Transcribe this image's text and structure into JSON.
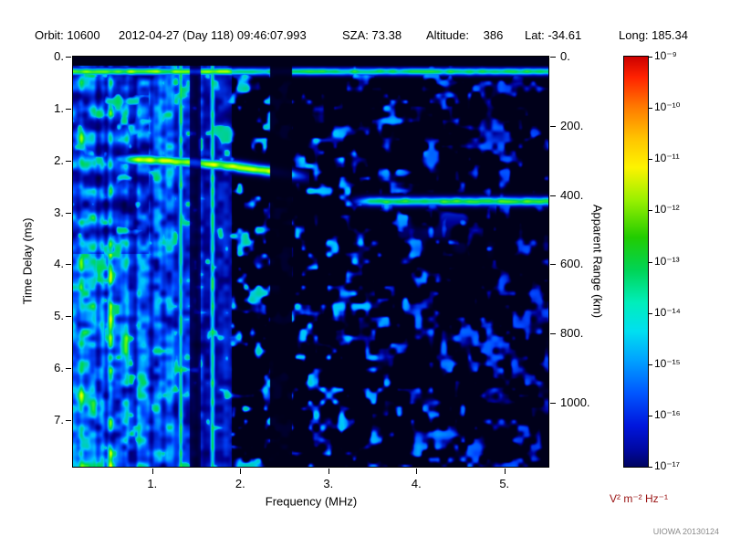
{
  "header": {
    "orbit_label": "Orbit:",
    "orbit_value": "10600",
    "datetime": "2012-04-27 (Day 118) 09:46:07.993",
    "sza_label": "SZA:",
    "sza_value": "73.38",
    "altitude_label": "Altitude:",
    "altitude_value": "386",
    "lat_label": "Lat:",
    "lat_value": "-34.61",
    "long_label": "Long:",
    "long_value": "185.34"
  },
  "chart_data": {
    "type": "heatmap",
    "xlabel": "Frequency (MHz)",
    "ylabel_left": "Time Delay (ms)",
    "ylabel_right": "Apparent Range (km)",
    "x_range_mhz": [
      0.1,
      5.5
    ],
    "y_range_ms": [
      0.0,
      7.9
    ],
    "x_ticks_mhz": [
      1,
      2,
      3,
      4,
      5
    ],
    "x_tick_labels": [
      "1.",
      "2.",
      "3.",
      "4.",
      "5."
    ],
    "y_ticks_ms": [
      0,
      1,
      2,
      3,
      4,
      5,
      6,
      7
    ],
    "y_tick_labels": [
      "0.",
      "1.",
      "2.",
      "3.",
      "4.",
      "5.",
      "6.",
      "7."
    ],
    "right_ticks_km": [
      0,
      200,
      400,
      600,
      800,
      1000
    ],
    "right_tick_labels": [
      "0.",
      "200.",
      "400.",
      "600.",
      "800.",
      "1000."
    ],
    "km_per_ms": 150,
    "colorbar": {
      "scale": "log",
      "max": "1e-9",
      "min": "1e-17",
      "tick_labels": [
        "10⁻⁹",
        "10⁻¹⁰",
        "10⁻¹¹",
        "10⁻¹²",
        "10⁻¹³",
        "10⁻¹⁴",
        "10⁻¹⁵",
        "10⁻¹⁶",
        "10⁻¹⁷"
      ],
      "units": "V² m⁻² Hz⁻¹",
      "units_color": "#991111",
      "stops": [
        {
          "p": 0,
          "c": "#cc0000"
        },
        {
          "p": 5,
          "c": "#ff2200"
        },
        {
          "p": 12,
          "c": "#ff7700"
        },
        {
          "p": 20,
          "c": "#ffc400"
        },
        {
          "p": 27,
          "c": "#fdf300"
        },
        {
          "p": 35,
          "c": "#99f000"
        },
        {
          "p": 44,
          "c": "#22cc00"
        },
        {
          "p": 52,
          "c": "#00d455"
        },
        {
          "p": 60,
          "c": "#00eebb"
        },
        {
          "p": 67,
          "c": "#00dff0"
        },
        {
          "p": 74,
          "c": "#00a2ff"
        },
        {
          "p": 82,
          "c": "#0057ff"
        },
        {
          "p": 90,
          "c": "#0016dd"
        },
        {
          "p": 96,
          "c": "#0008a0"
        },
        {
          "p": 100,
          "c": "#000460"
        }
      ]
    },
    "features": {
      "seed": 42,
      "top_black_ms": 0.16,
      "top_line": {
        "t_ms": 0.28,
        "sigma_ms": 0.05,
        "intensity": 0.55
      },
      "left_noise": {
        "f_max_mhz": 1.9,
        "intensity": 0.92,
        "row_period_ms": 0.52
      },
      "harmonic_lines_mhz": [
        1.32,
        1.68
      ],
      "dark_bands": [
        {
          "f0": 2.33,
          "f1": 2.58,
          "factor": 0.05
        },
        {
          "f0": 1.42,
          "f1": 1.55,
          "factor": 0.35
        }
      ],
      "ionosphere_trace": {
        "f0_mhz": 0.45,
        "f1_mhz": 2.78,
        "t0_ms": 1.97,
        "t1_ms": 2.32,
        "sigma_ms": 0.07,
        "intensity": 0.78
      },
      "surface_trace": {
        "t_ms": 2.78,
        "f0_mhz": 3.22,
        "f1_mhz": 5.5,
        "sigma_ms": 0.06,
        "intensity": 0.6,
        "scatter_f0_mhz": 3.6,
        "scatter_f1_mhz": 4.9,
        "scatter_depth_ms": 1.1
      }
    }
  },
  "watermark": "UIOWA 20130124"
}
